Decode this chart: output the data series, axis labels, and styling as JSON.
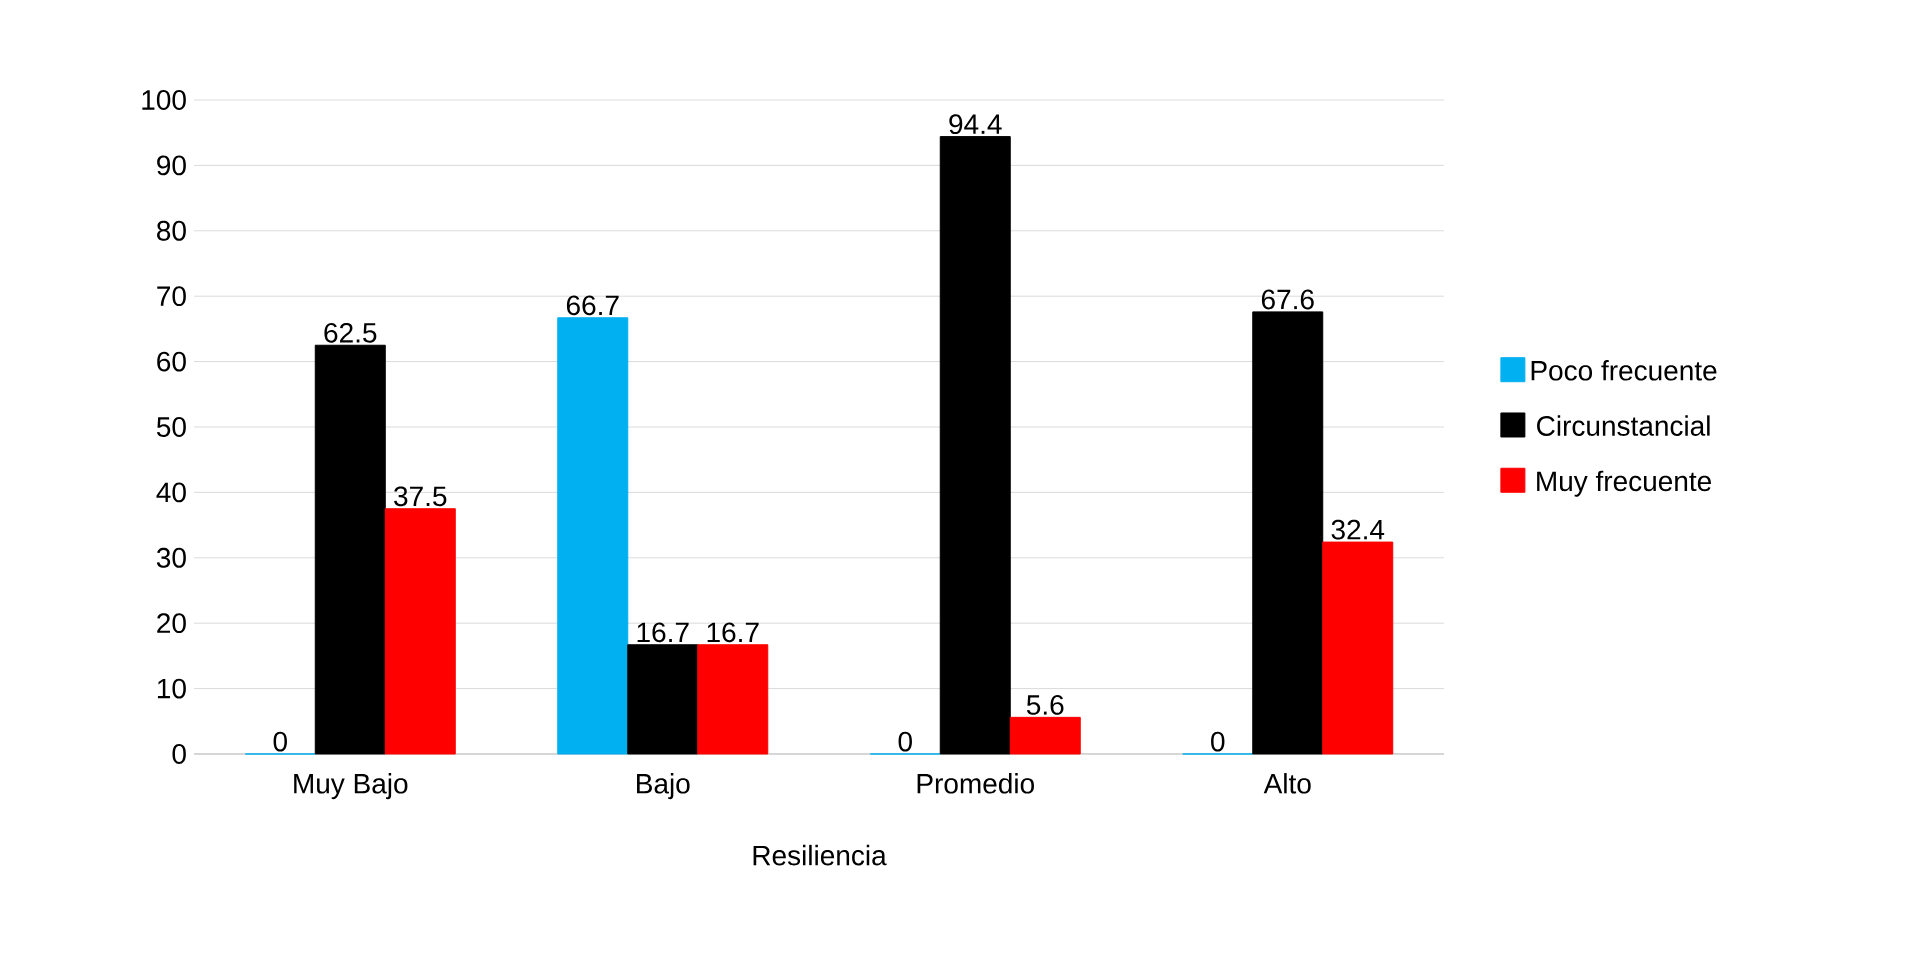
{
  "chart_data": {
    "type": "bar",
    "xlabel": "Resiliencia",
    "categories": [
      "Muy Bajo",
      "Bajo",
      "Promedio",
      "Alto"
    ],
    "series": [
      {
        "name": "Poco frecuente",
        "color": "#00b0f0",
        "values": [
          0,
          66.7,
          0,
          0
        ]
      },
      {
        "name": "Circunstancial",
        "color": "#000000",
        "values": [
          62.5,
          16.7,
          94.4,
          67.6
        ]
      },
      {
        "name": "Muy frecuente",
        "color": "#ff0000",
        "values": [
          37.5,
          16.7,
          5.6,
          32.4
        ]
      }
    ],
    "ylim": [
      0,
      100
    ],
    "yticks": [
      0,
      10,
      20,
      30,
      40,
      50,
      60,
      70,
      80,
      90,
      100
    ],
    "grid": "y",
    "legend": "right",
    "data_labels": true
  }
}
